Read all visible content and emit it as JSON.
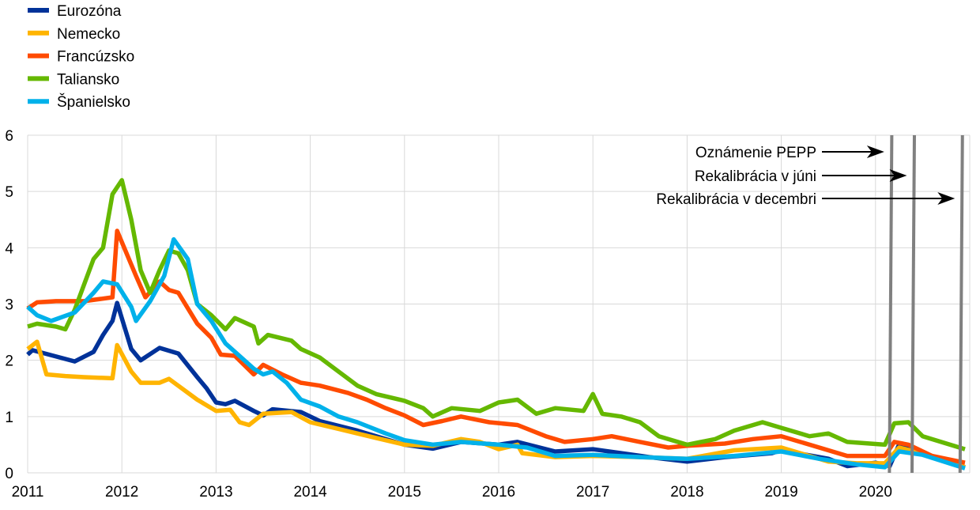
{
  "chart_data": {
    "type": "line",
    "title": "",
    "xlabel": "",
    "ylabel": "",
    "xlim": [
      2011,
      2021
    ],
    "ylim": [
      0,
      6
    ],
    "grid": true,
    "legend_position": "top-left",
    "x_ticks": [
      "2011",
      "2012",
      "2013",
      "2014",
      "2015",
      "2016",
      "2017",
      "2018",
      "2019",
      "2020"
    ],
    "y_ticks": [
      "0",
      "1",
      "2",
      "3",
      "4",
      "5",
      "6"
    ],
    "series": [
      {
        "name": "Eurozóna",
        "color": "#003299",
        "points": [
          [
            2011.0,
            2.1
          ],
          [
            2011.05,
            2.18
          ],
          [
            2011.5,
            1.98
          ],
          [
            2011.7,
            2.15
          ],
          [
            2011.8,
            2.45
          ],
          [
            2011.9,
            2.7
          ],
          [
            2011.95,
            3.02
          ],
          [
            2012.1,
            2.2
          ],
          [
            2012.2,
            2.0
          ],
          [
            2012.4,
            2.22
          ],
          [
            2012.6,
            2.12
          ],
          [
            2012.8,
            1.7
          ],
          [
            2012.9,
            1.5
          ],
          [
            2013.0,
            1.25
          ],
          [
            2013.1,
            1.22
          ],
          [
            2013.2,
            1.28
          ],
          [
            2013.4,
            1.1
          ],
          [
            2013.5,
            1.02
          ],
          [
            2013.6,
            1.13
          ],
          [
            2013.9,
            1.08
          ],
          [
            2014.1,
            0.92
          ],
          [
            2014.5,
            0.75
          ],
          [
            2015.0,
            0.5
          ],
          [
            2015.3,
            0.43
          ],
          [
            2015.6,
            0.55
          ],
          [
            2016.0,
            0.5
          ],
          [
            2016.2,
            0.55
          ],
          [
            2016.6,
            0.38
          ],
          [
            2017.0,
            0.42
          ],
          [
            2017.3,
            0.35
          ],
          [
            2017.6,
            0.28
          ],
          [
            2018.0,
            0.2
          ],
          [
            2018.4,
            0.28
          ],
          [
            2018.9,
            0.35
          ],
          [
            2019.0,
            0.4
          ],
          [
            2019.5,
            0.25
          ],
          [
            2019.7,
            0.12
          ],
          [
            2020.0,
            0.18
          ],
          [
            2020.15,
            0.12
          ],
          [
            2020.25,
            0.5
          ],
          [
            2020.4,
            0.4
          ],
          [
            2020.6,
            0.28
          ],
          [
            2020.95,
            0.1
          ]
        ]
      },
      {
        "name": "Nemecko",
        "color": "#FFB400",
        "points": [
          [
            2011.0,
            2.2
          ],
          [
            2011.1,
            2.33
          ],
          [
            2011.2,
            1.75
          ],
          [
            2011.4,
            1.72
          ],
          [
            2011.6,
            1.7
          ],
          [
            2011.9,
            1.68
          ],
          [
            2011.95,
            2.27
          ],
          [
            2012.1,
            1.8
          ],
          [
            2012.2,
            1.6
          ],
          [
            2012.4,
            1.6
          ],
          [
            2012.5,
            1.67
          ],
          [
            2012.8,
            1.3
          ],
          [
            2013.0,
            1.1
          ],
          [
            2013.15,
            1.12
          ],
          [
            2013.25,
            0.9
          ],
          [
            2013.35,
            0.85
          ],
          [
            2013.5,
            1.05
          ],
          [
            2013.8,
            1.08
          ],
          [
            2014.0,
            0.9
          ],
          [
            2014.3,
            0.78
          ],
          [
            2014.7,
            0.62
          ],
          [
            2015.0,
            0.5
          ],
          [
            2015.3,
            0.48
          ],
          [
            2015.6,
            0.6
          ],
          [
            2015.8,
            0.55
          ],
          [
            2016.0,
            0.42
          ],
          [
            2016.2,
            0.5
          ],
          [
            2016.25,
            0.35
          ],
          [
            2016.6,
            0.28
          ],
          [
            2017.0,
            0.3
          ],
          [
            2017.5,
            0.28
          ],
          [
            2018.0,
            0.25
          ],
          [
            2018.5,
            0.4
          ],
          [
            2019.0,
            0.45
          ],
          [
            2019.5,
            0.2
          ],
          [
            2019.8,
            0.17
          ],
          [
            2020.1,
            0.17
          ],
          [
            2020.25,
            0.45
          ],
          [
            2020.6,
            0.3
          ],
          [
            2020.95,
            0.1
          ]
        ]
      },
      {
        "name": "Francúzsko",
        "color": "#FF4B00",
        "points": [
          [
            2011.0,
            2.92
          ],
          [
            2011.1,
            3.03
          ],
          [
            2011.3,
            3.05
          ],
          [
            2011.6,
            3.05
          ],
          [
            2011.9,
            3.12
          ],
          [
            2011.95,
            4.3
          ],
          [
            2012.15,
            3.5
          ],
          [
            2012.25,
            3.12
          ],
          [
            2012.4,
            3.4
          ],
          [
            2012.5,
            3.25
          ],
          [
            2012.6,
            3.2
          ],
          [
            2012.8,
            2.65
          ],
          [
            2012.95,
            2.4
          ],
          [
            2013.05,
            2.1
          ],
          [
            2013.2,
            2.08
          ],
          [
            2013.4,
            1.75
          ],
          [
            2013.5,
            1.92
          ],
          [
            2013.7,
            1.75
          ],
          [
            2013.9,
            1.6
          ],
          [
            2014.1,
            1.55
          ],
          [
            2014.4,
            1.42
          ],
          [
            2014.6,
            1.3
          ],
          [
            2014.8,
            1.15
          ],
          [
            2015.0,
            1.02
          ],
          [
            2015.2,
            0.85
          ],
          [
            2015.4,
            0.92
          ],
          [
            2015.6,
            1.0
          ],
          [
            2015.9,
            0.9
          ],
          [
            2016.2,
            0.85
          ],
          [
            2016.5,
            0.65
          ],
          [
            2016.7,
            0.55
          ],
          [
            2017.0,
            0.6
          ],
          [
            2017.2,
            0.65
          ],
          [
            2017.5,
            0.55
          ],
          [
            2017.8,
            0.45
          ],
          [
            2018.0,
            0.48
          ],
          [
            2018.4,
            0.52
          ],
          [
            2018.7,
            0.6
          ],
          [
            2019.0,
            0.65
          ],
          [
            2019.3,
            0.5
          ],
          [
            2019.7,
            0.3
          ],
          [
            2020.1,
            0.3
          ],
          [
            2020.2,
            0.55
          ],
          [
            2020.35,
            0.5
          ],
          [
            2020.6,
            0.3
          ],
          [
            2020.95,
            0.18
          ]
        ]
      },
      {
        "name": "Taliansko",
        "color": "#65B800",
        "points": [
          [
            2011.0,
            2.6
          ],
          [
            2011.1,
            2.65
          ],
          [
            2011.3,
            2.6
          ],
          [
            2011.4,
            2.55
          ],
          [
            2011.5,
            2.9
          ],
          [
            2011.7,
            3.8
          ],
          [
            2011.8,
            4.0
          ],
          [
            2011.9,
            4.95
          ],
          [
            2012.0,
            5.2
          ],
          [
            2012.1,
            4.5
          ],
          [
            2012.2,
            3.6
          ],
          [
            2012.3,
            3.2
          ],
          [
            2012.4,
            3.6
          ],
          [
            2012.5,
            3.95
          ],
          [
            2012.6,
            3.9
          ],
          [
            2012.7,
            3.6
          ],
          [
            2012.8,
            3.0
          ],
          [
            2012.95,
            2.8
          ],
          [
            2013.1,
            2.55
          ],
          [
            2013.2,
            2.75
          ],
          [
            2013.4,
            2.6
          ],
          [
            2013.45,
            2.3
          ],
          [
            2013.55,
            2.45
          ],
          [
            2013.8,
            2.35
          ],
          [
            2013.9,
            2.2
          ],
          [
            2014.1,
            2.05
          ],
          [
            2014.3,
            1.8
          ],
          [
            2014.5,
            1.55
          ],
          [
            2014.7,
            1.4
          ],
          [
            2015.0,
            1.28
          ],
          [
            2015.2,
            1.15
          ],
          [
            2015.3,
            1.0
          ],
          [
            2015.5,
            1.15
          ],
          [
            2015.8,
            1.1
          ],
          [
            2016.0,
            1.25
          ],
          [
            2016.2,
            1.3
          ],
          [
            2016.4,
            1.05
          ],
          [
            2016.6,
            1.15
          ],
          [
            2016.9,
            1.1
          ],
          [
            2017.0,
            1.4
          ],
          [
            2017.1,
            1.05
          ],
          [
            2017.3,
            1.0
          ],
          [
            2017.5,
            0.9
          ],
          [
            2017.7,
            0.65
          ],
          [
            2018.0,
            0.5
          ],
          [
            2018.3,
            0.6
          ],
          [
            2018.5,
            0.75
          ],
          [
            2018.8,
            0.9
          ],
          [
            2019.0,
            0.8
          ],
          [
            2019.3,
            0.65
          ],
          [
            2019.5,
            0.7
          ],
          [
            2019.7,
            0.55
          ],
          [
            2020.1,
            0.5
          ],
          [
            2020.2,
            0.88
          ],
          [
            2020.35,
            0.9
          ],
          [
            2020.5,
            0.65
          ],
          [
            2020.95,
            0.42
          ]
        ]
      },
      {
        "name": "Španielsko",
        "color": "#00B1EA",
        "points": [
          [
            2011.0,
            2.95
          ],
          [
            2011.1,
            2.8
          ],
          [
            2011.25,
            2.7
          ],
          [
            2011.5,
            2.85
          ],
          [
            2011.7,
            3.2
          ],
          [
            2011.8,
            3.4
          ],
          [
            2011.95,
            3.35
          ],
          [
            2012.1,
            2.95
          ],
          [
            2012.15,
            2.7
          ],
          [
            2012.3,
            3.05
          ],
          [
            2012.45,
            3.5
          ],
          [
            2012.55,
            4.15
          ],
          [
            2012.7,
            3.8
          ],
          [
            2012.8,
            3.0
          ],
          [
            2012.95,
            2.7
          ],
          [
            2013.1,
            2.3
          ],
          [
            2013.3,
            2.0
          ],
          [
            2013.4,
            1.85
          ],
          [
            2013.5,
            1.75
          ],
          [
            2013.6,
            1.8
          ],
          [
            2013.75,
            1.6
          ],
          [
            2013.9,
            1.3
          ],
          [
            2014.1,
            1.18
          ],
          [
            2014.3,
            1.0
          ],
          [
            2014.5,
            0.9
          ],
          [
            2014.8,
            0.7
          ],
          [
            2015.0,
            0.58
          ],
          [
            2015.3,
            0.5
          ],
          [
            2015.6,
            0.55
          ],
          [
            2016.0,
            0.5
          ],
          [
            2016.3,
            0.45
          ],
          [
            2016.6,
            0.3
          ],
          [
            2017.0,
            0.32
          ],
          [
            2017.5,
            0.28
          ],
          [
            2018.0,
            0.25
          ],
          [
            2018.5,
            0.3
          ],
          [
            2019.0,
            0.38
          ],
          [
            2019.4,
            0.25
          ],
          [
            2019.8,
            0.15
          ],
          [
            2020.1,
            0.1
          ],
          [
            2020.25,
            0.38
          ],
          [
            2020.5,
            0.32
          ],
          [
            2020.95,
            0.08
          ]
        ]
      }
    ],
    "annotations": [
      {
        "label": "Oznámenie PEPP",
        "x": 2020.16
      },
      {
        "label": "Rekalibrácia v júni",
        "x": 2020.4
      },
      {
        "label": "Rekalibrácia v decembri",
        "x": 2020.91
      }
    ],
    "event_line_color": "#808080"
  }
}
